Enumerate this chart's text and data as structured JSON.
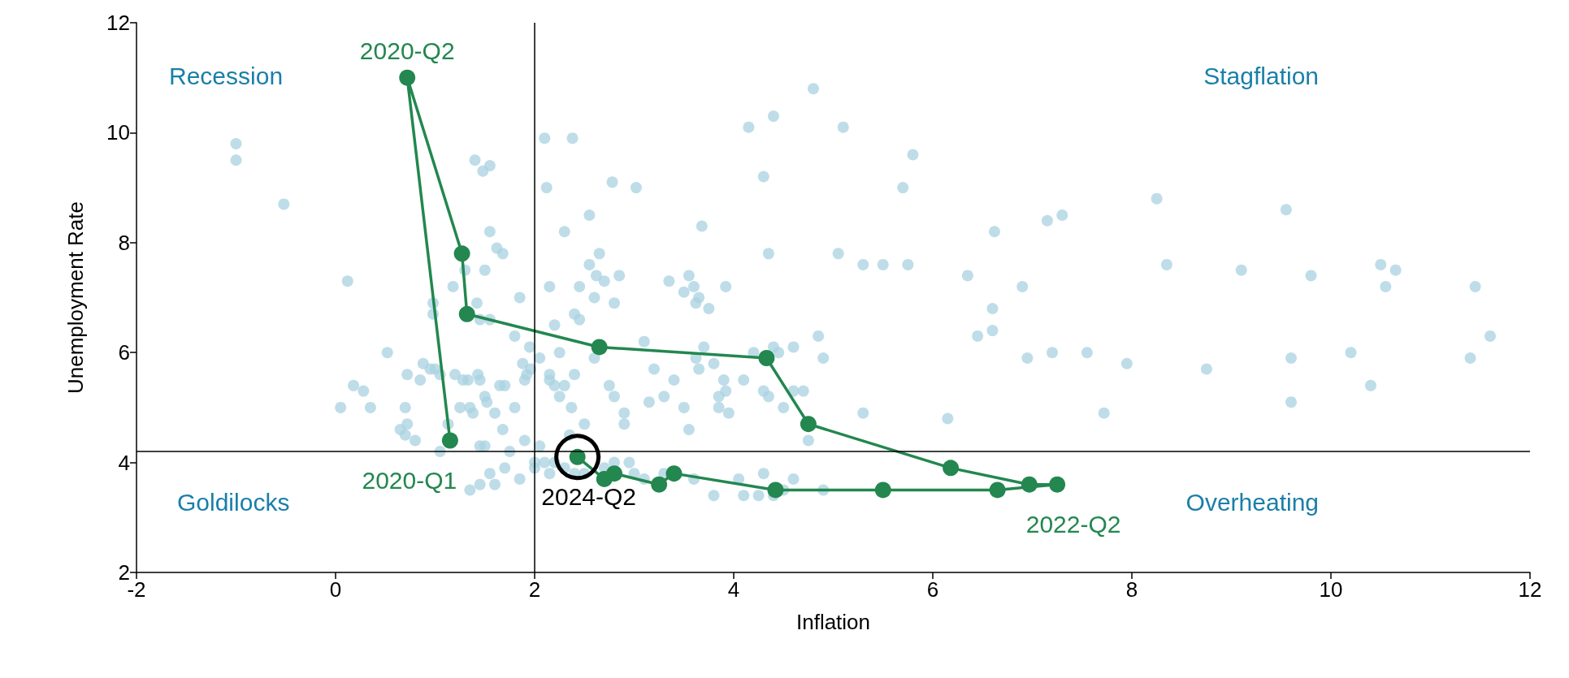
{
  "chart_data": {
    "type": "scatter",
    "xlabel": "Inflation",
    "ylabel": "Unemployment Rate",
    "xlim": [
      -2,
      12
    ],
    "xticks": [
      -2,
      0,
      2,
      4,
      6,
      8,
      10,
      12
    ],
    "ylim": [
      2,
      12
    ],
    "yticks": [
      2,
      4,
      6,
      8,
      10,
      12
    ],
    "grid": false,
    "marker": "circle",
    "ref_lines": [
      {
        "axis": "x",
        "value": 2,
        "color": "#000000"
      },
      {
        "axis": "y",
        "value": 4.2,
        "color": "#000000"
      }
    ],
    "annotations": [
      "Recession",
      "Stagflation",
      "Goldilocks",
      "Overheating",
      {
        "text": "2020-Q2",
        "x": 0.72,
        "y": 11.0
      },
      {
        "text": "2020-Q1",
        "x": 1.15,
        "y": 4.4
      },
      {
        "text": "2022-Q2",
        "x": 7.25,
        "y": 3.6
      },
      {
        "text": "2024-Q2",
        "x": 2.43,
        "y": 4.1
      }
    ],
    "series": [
      {
        "color": "#a8d2e0",
        "x": [
          -1.0,
          -1.0,
          -0.52,
          0.12,
          0.05,
          0.18,
          0.28,
          0.35,
          0.52,
          0.65,
          0.7,
          0.7,
          0.72,
          0.72,
          0.8,
          0.85,
          0.88,
          0.95,
          0.98,
          0.98,
          1.0,
          1.05,
          1.05,
          1.13,
          1.18,
          1.2,
          1.25,
          1.28,
          1.3,
          1.33,
          1.35,
          1.38,
          1.4,
          1.42,
          1.43,
          1.45,
          1.45,
          1.45,
          1.48,
          1.5,
          1.5,
          1.5,
          1.52,
          1.55,
          1.55,
          1.55,
          1.6,
          1.62,
          1.65,
          1.68,
          1.68,
          1.7,
          1.75,
          1.8,
          1.8,
          1.85,
          1.88,
          1.9,
          1.9,
          1.92,
          1.95,
          1.96,
          2.0,
          2.05,
          2.05,
          2.1,
          2.12,
          2.15,
          2.15,
          2.15,
          2.2,
          2.2,
          2.25,
          2.25,
          2.3,
          2.3,
          2.35,
          2.37,
          2.38,
          2.4,
          2.4,
          2.45,
          2.45,
          2.5,
          2.55,
          2.55,
          2.6,
          2.6,
          2.62,
          2.65,
          2.7,
          2.75,
          2.8,
          2.8,
          2.85,
          2.9,
          2.9,
          2.95,
          2.78,
          3.02,
          3.1,
          3.15,
          3.2,
          3.3,
          3.35,
          3.4,
          3.5,
          3.5,
          3.55,
          3.55,
          3.6,
          3.62,
          3.62,
          3.65,
          3.65,
          3.68,
          3.7,
          3.75,
          3.8,
          3.85,
          3.85,
          3.9,
          3.92,
          3.92,
          3.95,
          4.15,
          4.3,
          4.4,
          4.35,
          4.1,
          4.2,
          4.3,
          4.35,
          4.4,
          4.45,
          4.5,
          4.6,
          4.6,
          4.7,
          4.8,
          4.85,
          4.9,
          4.75,
          5.05,
          5.1,
          5.3,
          5.3,
          5.5,
          5.7,
          5.8,
          5.75,
          6.15,
          6.35,
          6.45,
          6.6,
          6.6,
          6.62,
          6.9,
          6.95,
          7.15,
          7.2,
          7.3,
          7.55,
          7.72,
          7.95,
          8.25,
          8.35,
          8.75,
          9.1,
          9.55,
          9.6,
          9.6,
          9.8,
          10.2,
          10.4,
          10.5,
          10.55,
          10.65,
          11.45,
          11.4,
          11.6,
          1.55,
          1.35,
          1.45,
          1.6,
          1.7,
          1.85,
          2.1,
          2.15,
          2.2,
          2.3,
          2.4,
          2.5,
          2.7,
          2.8,
          3.1,
          3.3,
          3.6,
          3.8,
          4.05,
          4.1,
          4.25,
          4.4,
          4.5,
          4.6,
          4.9,
          4.3,
          3.0,
          2.0
        ],
        "values": [
          9.8,
          9.5,
          8.7,
          7.3,
          5.0,
          5.4,
          5.3,
          5.0,
          6.0,
          4.6,
          4.5,
          5.0,
          4.7,
          5.6,
          4.4,
          5.5,
          5.8,
          5.7,
          6.9,
          6.7,
          5.7,
          5.6,
          4.2,
          4.7,
          7.2,
          5.6,
          5.0,
          5.5,
          7.5,
          5.5,
          5.0,
          4.9,
          9.5,
          6.9,
          5.6,
          5.5,
          4.3,
          6.6,
          9.3,
          7.5,
          5.2,
          4.3,
          5.1,
          9.4,
          8.2,
          6.6,
          4.9,
          7.9,
          5.4,
          7.8,
          4.6,
          5.4,
          4.2,
          6.3,
          5.0,
          7.0,
          5.8,
          5.5,
          4.4,
          5.6,
          6.1,
          5.7,
          4.0,
          4.3,
          5.9,
          9.9,
          9.0,
          5.5,
          7.2,
          5.6,
          6.5,
          5.4,
          5.2,
          6.0,
          8.2,
          5.4,
          4.5,
          5.0,
          9.9,
          6.7,
          5.6,
          7.2,
          6.6,
          4.7,
          8.5,
          7.6,
          7.0,
          5.9,
          7.4,
          7.8,
          7.3,
          5.4,
          6.9,
          5.2,
          7.4,
          4.9,
          4.7,
          4.0,
          9.1,
          9.0,
          6.2,
          5.1,
          5.7,
          5.2,
          7.3,
          5.5,
          5.0,
          7.1,
          4.6,
          7.4,
          7.2,
          6.9,
          5.9,
          5.7,
          7.0,
          8.3,
          6.1,
          6.8,
          5.8,
          5.2,
          5.0,
          5.5,
          7.2,
          5.3,
          4.9,
          10.1,
          9.2,
          10.3,
          7.8,
          5.5,
          6.0,
          5.3,
          5.2,
          6.1,
          6.0,
          5.0,
          6.1,
          5.3,
          5.3,
          10.8,
          6.3,
          5.9,
          4.4,
          7.8,
          10.1,
          7.6,
          4.9,
          7.6,
          9.0,
          9.6,
          7.6,
          4.8,
          7.4,
          6.3,
          6.4,
          6.8,
          8.2,
          7.2,
          5.9,
          8.4,
          6.0,
          8.5,
          6.0,
          4.9,
          5.8,
          8.8,
          7.6,
          5.7,
          7.5,
          8.6,
          5.9,
          5.1,
          7.4,
          6.0,
          5.4,
          7.6,
          7.2,
          7.5,
          7.2,
          5.9,
          6.3,
          3.8,
          3.5,
          3.6,
          3.6,
          3.9,
          3.7,
          4.0,
          3.8,
          4.0,
          3.9,
          3.8,
          3.8,
          3.9,
          4.0,
          3.7,
          3.8,
          3.7,
          3.4,
          3.7,
          3.4,
          3.4,
          3.4,
          3.5,
          3.7,
          3.5,
          3.8,
          3.8,
          3.9
        ]
      },
      {
        "type": "line",
        "color": "#23874f",
        "x": [
          1.15,
          0.72,
          1.27,
          1.32,
          2.65,
          4.33,
          4.75,
          6.18,
          6.97,
          7.25,
          6.65,
          5.5,
          4.42,
          3.4,
          3.25,
          2.8,
          2.7,
          2.43
        ],
        "values": [
          4.4,
          11.0,
          7.8,
          6.7,
          6.1,
          5.9,
          4.7,
          3.9,
          3.6,
          3.6,
          3.5,
          3.5,
          3.5,
          3.8,
          3.6,
          3.8,
          3.7,
          4.1
        ]
      }
    ]
  }
}
